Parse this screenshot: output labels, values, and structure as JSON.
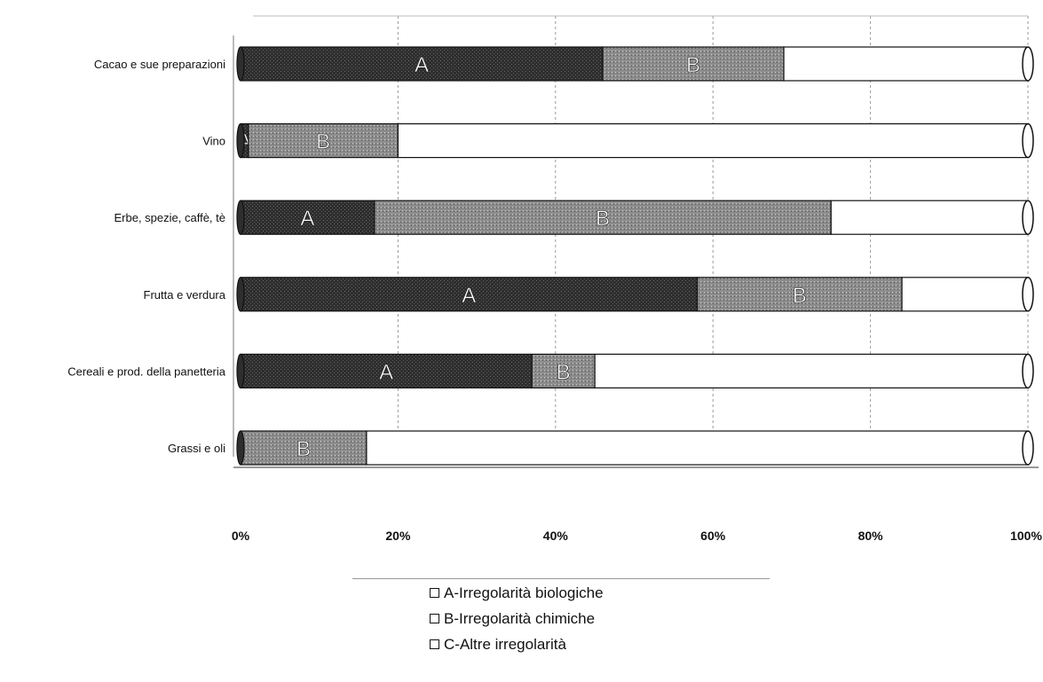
{
  "chart_data": {
    "type": "bar",
    "orientation": "horizontal",
    "stacked": true,
    "percent": true,
    "categories": [
      "Cacao e sue preparazioni",
      "Vino",
      "Erbe, spezie, caffè, tè",
      "Frutta e verdura",
      "Cereali e prod. della panetteria",
      "Grassi e oli"
    ],
    "series": [
      {
        "name": "A-Irregolarità biologiche",
        "values": [
          46,
          1,
          17,
          58,
          37,
          0
        ],
        "color": "#2e2e2e"
      },
      {
        "name": "B-Irregolarità chimiche",
        "values": [
          23,
          19,
          58,
          26,
          8,
          16
        ],
        "color": "#8c8c8c"
      },
      {
        "name": "C-Altre irregolarità",
        "values": [
          31,
          80,
          25,
          16,
          55,
          84
        ],
        "color": "#ffffff"
      }
    ],
    "segment_labels": [
      "A",
      "B"
    ],
    "xlim": [
      0,
      100
    ],
    "x_ticks": [
      "0%",
      "20%",
      "40%",
      "60%",
      "80%",
      "100%"
    ],
    "grid": true,
    "legend_position": "bottom"
  }
}
